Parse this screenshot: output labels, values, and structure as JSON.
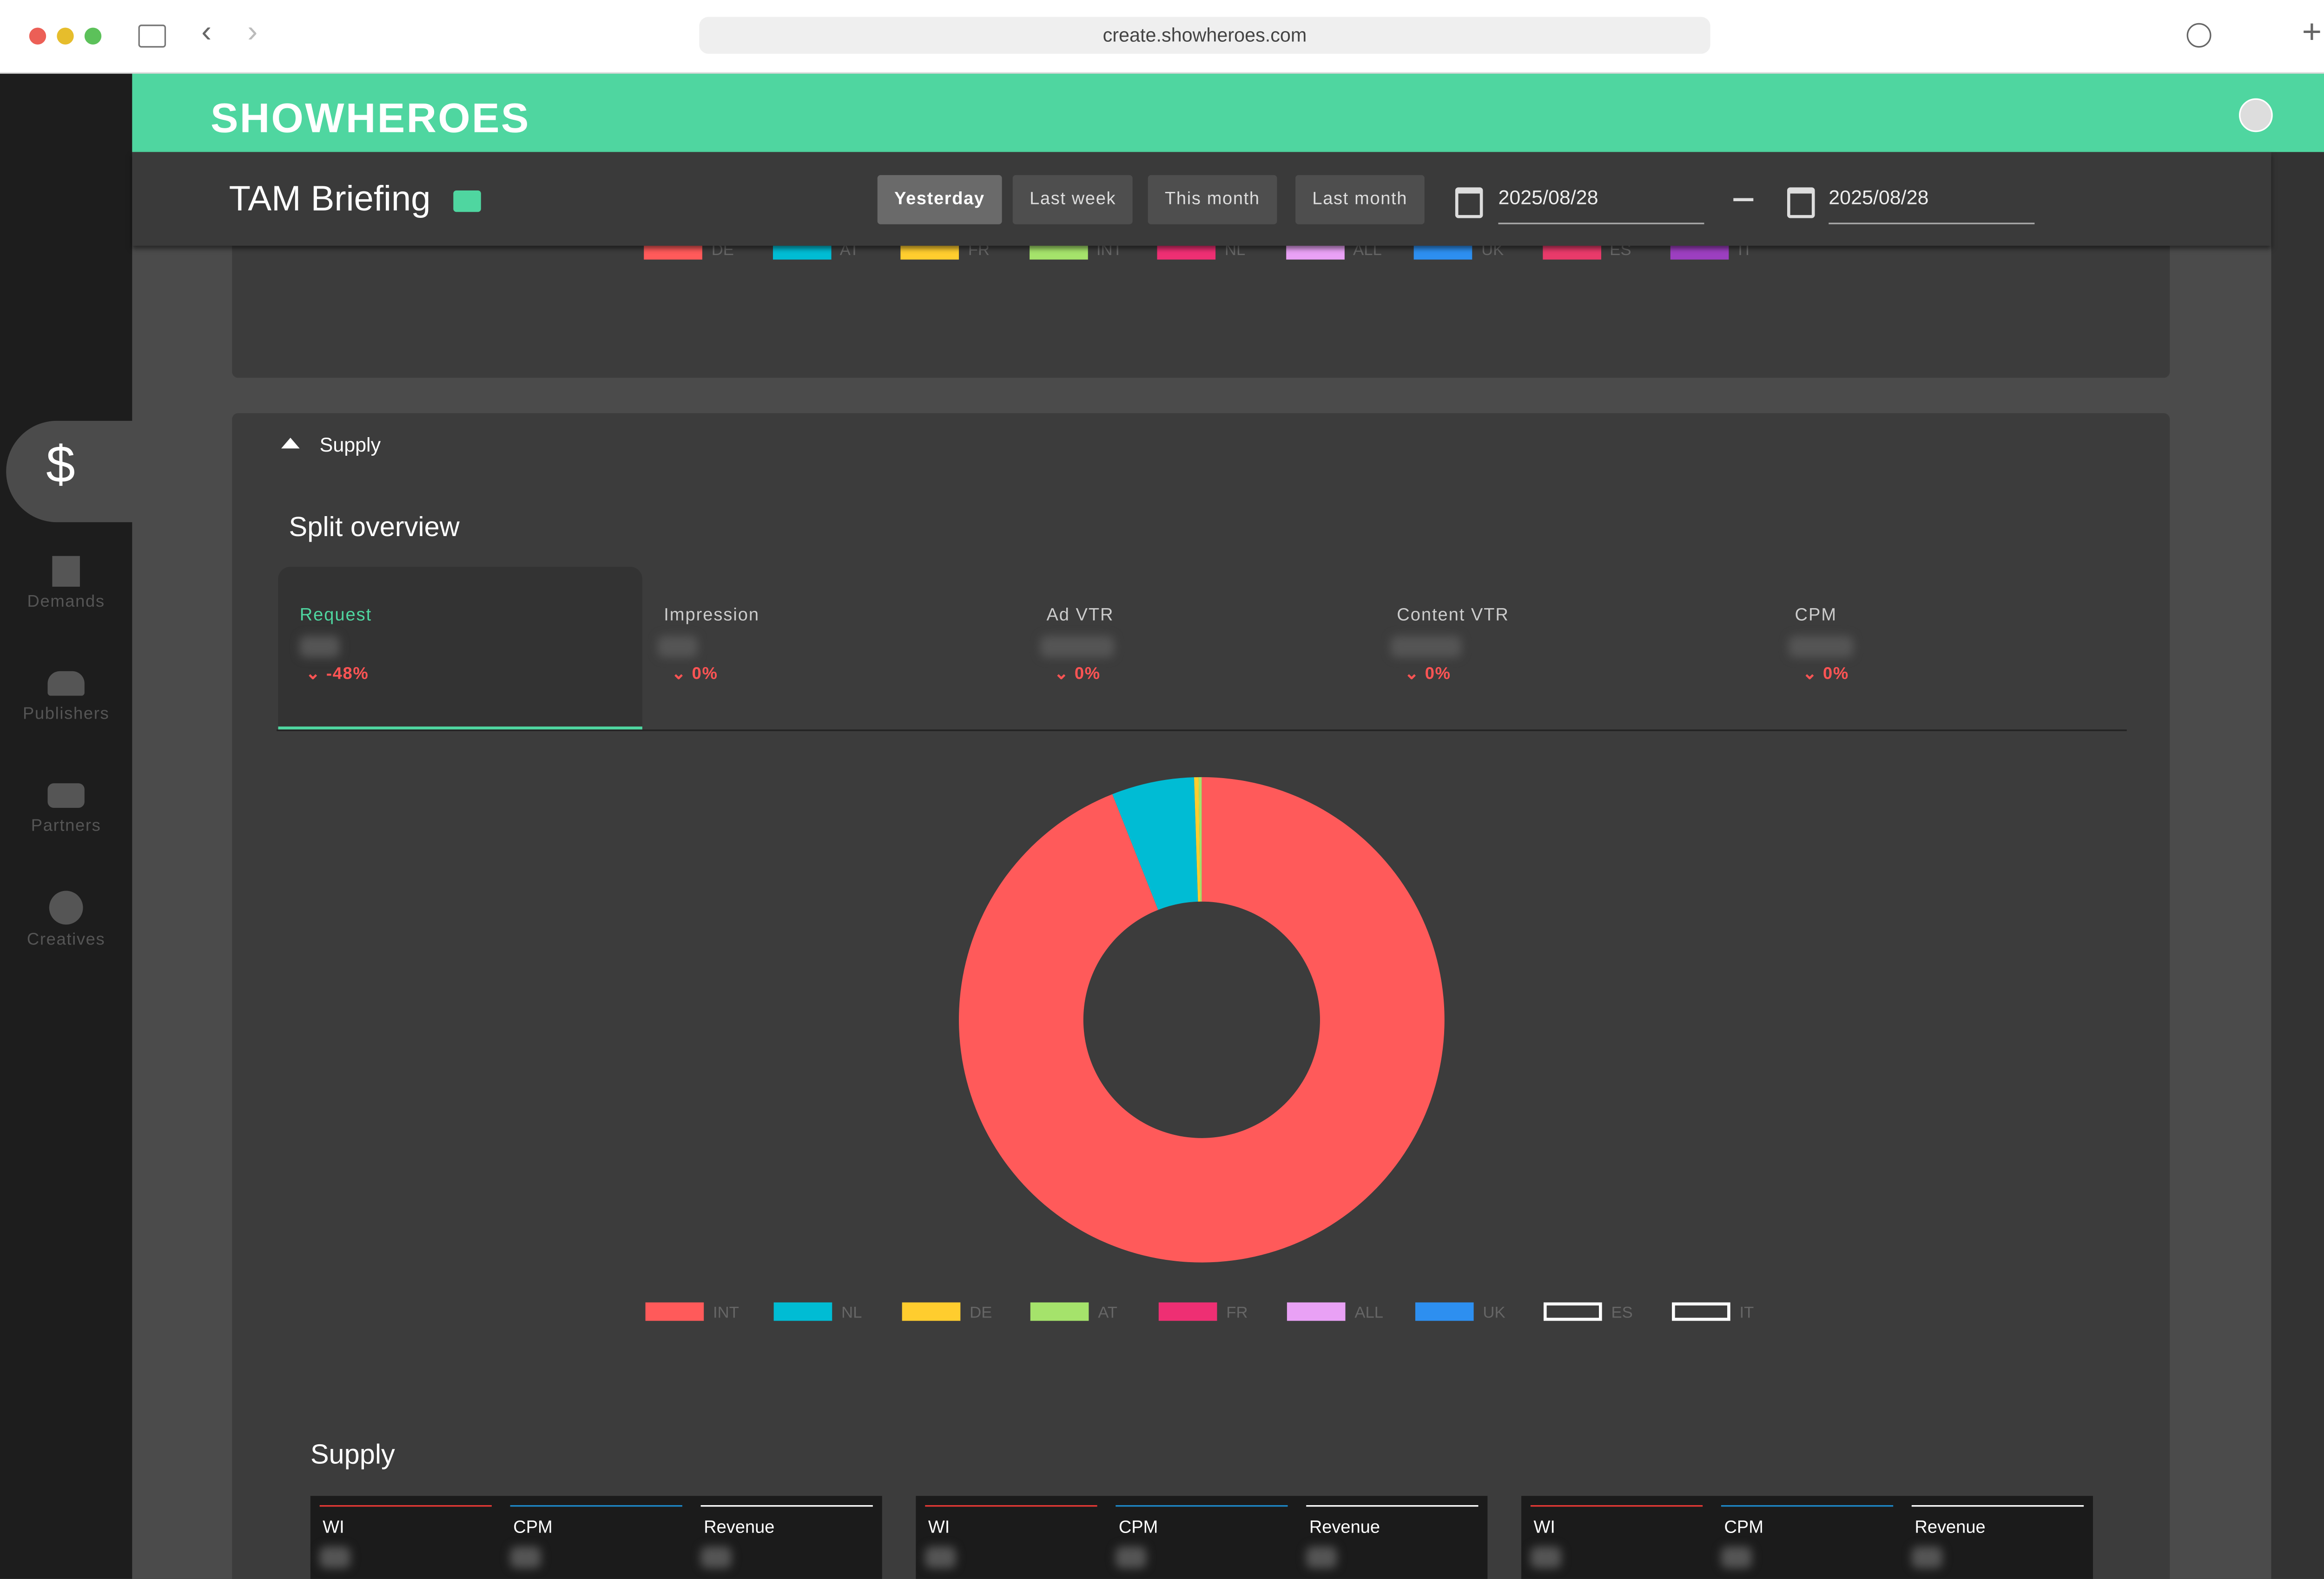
{
  "browser": {
    "url": "create.showheroes.com"
  },
  "header": {
    "logo": "SHOWHEROES"
  },
  "sidebar": {
    "items": [
      "Demands",
      "Publishers",
      "Partners",
      "Creatives"
    ]
  },
  "toolbar": {
    "title": "TAM Briefing",
    "ranges": [
      "Yesterday",
      "Last week",
      "This month",
      "Last month"
    ],
    "start_date": "2025/08/28",
    "end_date": "2025/08/28"
  },
  "previous_legend": [
    {
      "name": "DE",
      "color": "#ff5a5a"
    },
    {
      "name": "AT",
      "color": "#00bcd4"
    },
    {
      "name": "FR",
      "color": "#ffcd2e"
    },
    {
      "name": "INT",
      "color": "#a5e36b"
    },
    {
      "name": "NL",
      "color": "#ee2f73"
    },
    {
      "name": "ALL",
      "color": "#e9a1f5"
    },
    {
      "name": "UK",
      "color": "#2d8ff0"
    },
    {
      "name": "ES",
      "color": "#e83a6a"
    },
    {
      "name": "IT",
      "color": "#9c3fc0"
    }
  ],
  "section": {
    "title": "Supply",
    "split_overview": "Split overview"
  },
  "metrics": [
    {
      "label": "Request",
      "delta": "-48%"
    },
    {
      "label": "Impression",
      "delta": "0%"
    },
    {
      "label": "Ad VTR",
      "delta": "0%"
    },
    {
      "label": "Content VTR",
      "delta": "0%"
    },
    {
      "label": "CPM",
      "delta": "0%"
    }
  ],
  "chart_data": {
    "type": "donut",
    "series": [
      {
        "name": "INT",
        "color": "#ff5a5a",
        "values": [
          94
        ]
      },
      {
        "name": "NL",
        "color": "#00bcd4",
        "values": [
          5.5
        ]
      },
      {
        "name": "DE",
        "color": "#ffcd2e",
        "values": [
          0.3
        ]
      },
      {
        "name": "AT",
        "color": "#a5e36b",
        "values": [
          0.2
        ]
      },
      {
        "name": "FR",
        "color": "#ee2f73",
        "values": [
          0
        ]
      },
      {
        "name": "ALL",
        "color": "#e9a1f5",
        "values": [
          0
        ]
      },
      {
        "name": "UK",
        "color": "#2d8ff0",
        "values": [
          0
        ]
      },
      {
        "name": "ES",
        "values": [
          null
        ]
      },
      {
        "name": "IT",
        "values": [
          null
        ]
      }
    ]
  },
  "supply": {
    "title": "Supply",
    "cards": [
      {
        "columns": [
          {
            "label": "WI",
            "color": "#e53935"
          },
          {
            "label": "CPM",
            "color": "#1e88c8"
          },
          {
            "label": "Revenue",
            "color": "#ffffff"
          }
        ]
      },
      {
        "columns": [
          {
            "label": "WI",
            "color": "#e53935"
          },
          {
            "label": "CPM",
            "color": "#1e88c8"
          },
          {
            "label": "Revenue",
            "color": "#ffffff"
          }
        ]
      },
      {
        "columns": [
          {
            "label": "WI",
            "color": "#e53935"
          },
          {
            "label": "CPM",
            "color": "#1e88c8"
          },
          {
            "label": "Revenue",
            "color": "#ffffff"
          }
        ]
      }
    ]
  }
}
